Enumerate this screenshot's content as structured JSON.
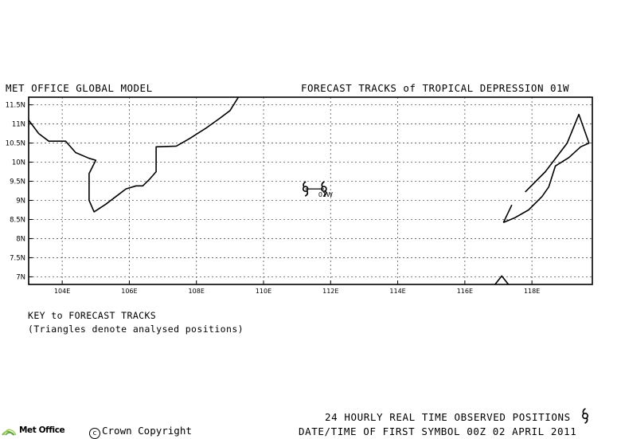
{
  "header": {
    "left_title": "MET OFFICE GLOBAL MODEL",
    "right_title": "FORECAST TRACKS of TROPICAL DEPRESSION 01W"
  },
  "map": {
    "lon_range": [
      103.0,
      119.8
    ],
    "lat_range": [
      6.8,
      11.7
    ],
    "x_ticks": [
      {
        "value": 104,
        "label": "104E"
      },
      {
        "value": 106,
        "label": "106E"
      },
      {
        "value": 108,
        "label": "108E"
      },
      {
        "value": 110,
        "label": "110E"
      },
      {
        "value": 112,
        "label": "112E"
      },
      {
        "value": 114,
        "label": "114E"
      },
      {
        "value": 116,
        "label": "116E"
      },
      {
        "value": 118,
        "label": "118E"
      }
    ],
    "y_ticks": [
      {
        "value": 7.0,
        "label": "7N"
      },
      {
        "value": 7.5,
        "label": "7.5N"
      },
      {
        "value": 8.0,
        "label": "8N"
      },
      {
        "value": 8.5,
        "label": "8.5N"
      },
      {
        "value": 9.0,
        "label": "9N"
      },
      {
        "value": 9.5,
        "label": "9.5N"
      },
      {
        "value": 10.0,
        "label": "10N"
      },
      {
        "value": 10.5,
        "label": "10.5N"
      },
      {
        "value": 11.0,
        "label": "11N"
      },
      {
        "value": 11.5,
        "label": "11.5N"
      }
    ],
    "grid": true,
    "storm_label": "01W",
    "storm_positions": [
      {
        "lon": 111.25,
        "lat": 9.3
      },
      {
        "lon": 111.8,
        "lat": 9.3
      }
    ],
    "coastlines": [
      [
        [
          103.0,
          11.1
        ],
        [
          103.3,
          10.75
        ],
        [
          103.6,
          10.55
        ],
        [
          104.1,
          10.55
        ],
        [
          104.4,
          10.25
        ],
        [
          104.8,
          10.1
        ],
        [
          105.0,
          10.05
        ],
        [
          104.8,
          9.7
        ],
        [
          104.8,
          9.0
        ],
        [
          104.95,
          8.7
        ],
        [
          105.3,
          8.9
        ],
        [
          105.6,
          9.1
        ],
        [
          105.9,
          9.3
        ],
        [
          106.2,
          9.38
        ],
        [
          106.4,
          9.38
        ],
        [
          106.6,
          9.55
        ],
        [
          106.8,
          9.75
        ],
        [
          106.8,
          10.4
        ],
        [
          107.4,
          10.42
        ],
        [
          107.8,
          10.62
        ],
        [
          108.3,
          10.9
        ],
        [
          108.7,
          11.15
        ],
        [
          109.0,
          11.35
        ],
        [
          109.25,
          11.7
        ]
      ],
      [
        [
          117.15,
          8.42
        ],
        [
          117.5,
          8.55
        ],
        [
          117.9,
          8.75
        ],
        [
          118.3,
          9.1
        ],
        [
          118.5,
          9.35
        ],
        [
          118.7,
          9.9
        ],
        [
          119.1,
          10.12
        ],
        [
          119.45,
          10.4
        ],
        [
          119.7,
          10.5
        ],
        [
          119.4,
          11.25
        ],
        [
          119.05,
          10.5
        ],
        [
          118.4,
          9.75
        ],
        [
          117.8,
          9.22
        ]
      ],
      [
        [
          117.15,
          8.42
        ],
        [
          117.4,
          8.88
        ]
      ],
      [
        [
          116.9,
          6.8
        ],
        [
          117.1,
          7.02
        ],
        [
          117.3,
          6.8
        ]
      ]
    ]
  },
  "key": {
    "title": "KEY to FORECAST TRACKS",
    "subtitle": "(Triangles denote analysed positions)"
  },
  "footer": {
    "observed_label": "24 HOURLY REAL TIME OBSERVED POSITIONS",
    "first_symbol_label": "DATE/TIME OF FIRST SYMBOL 00Z 02 APRIL 2011",
    "logo_text": "Met Office",
    "copyright": "Crown Copyright",
    "copyright_symbol": "c"
  }
}
